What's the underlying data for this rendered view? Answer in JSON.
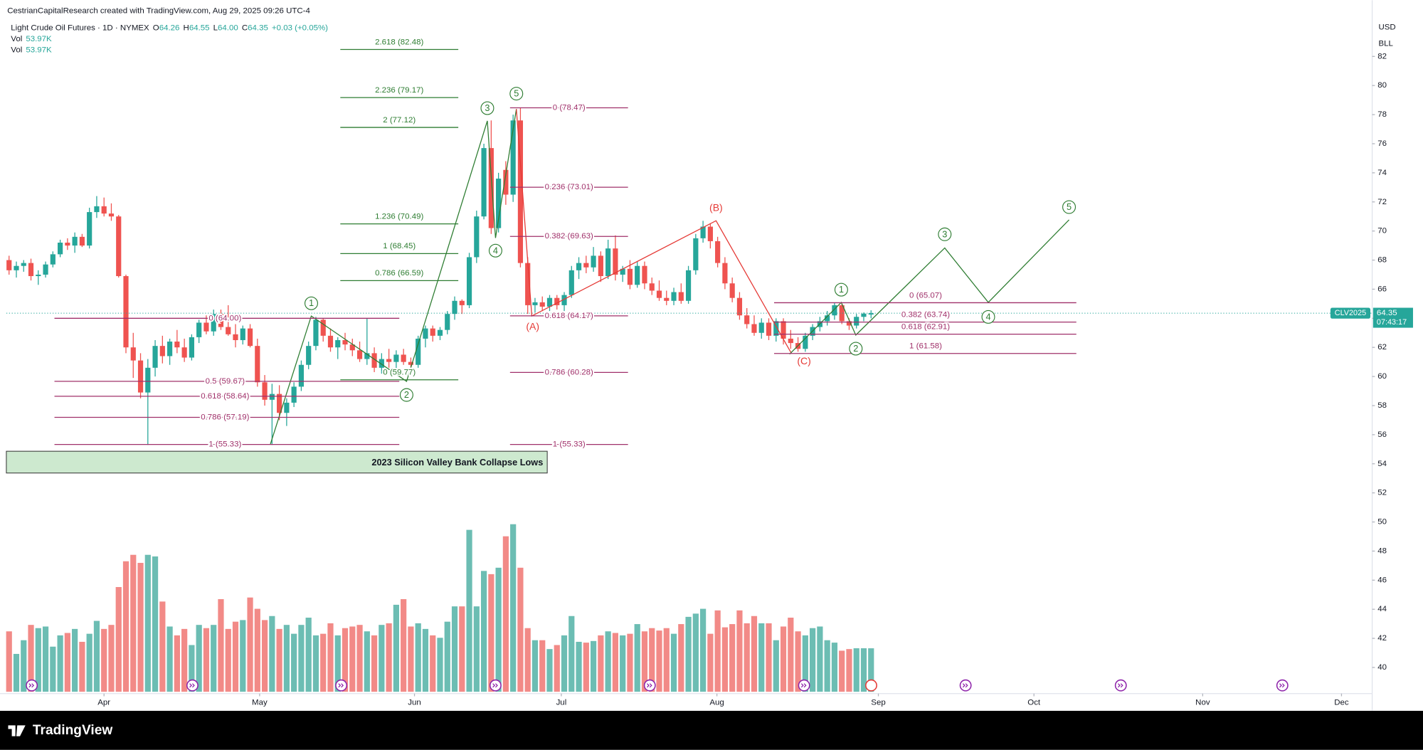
{
  "chart_data": {
    "type": "candlestick",
    "attribution": "CestrianCapitalResearch created with TradingView.com, Aug 29, 2025 09:26 UTC-4",
    "title": "Light Crude Oil Futures · 1D · NYMEX",
    "ohlc_legend": [
      {
        "label": "O",
        "value": "64.26"
      },
      {
        "label": "H",
        "value": "64.55"
      },
      {
        "label": "L",
        "value": "64.00"
      },
      {
        "label": "C",
        "value": "64.35"
      }
    ],
    "change": "+0.03 (+0.05%)",
    "volume_legend": [
      {
        "label": "Vol",
        "value": "53.97K"
      },
      {
        "label": "Vol",
        "value": "53.97K"
      }
    ],
    "currency": "USD",
    "unit": "BLL",
    "last_price_label": {
      "symbol": "CLV2025",
      "price": "64.35",
      "countdown": "07:43:17"
    },
    "annotation": "2023 Silicon Valley Bank Collapse Lows",
    "brand": "TradingView",
    "up_color": "#26a69a",
    "down_color": "#ef5350",
    "volume_up_color": "#6cbdb3",
    "volume_down_color": "#f28a87",
    "grid": false,
    "ylim": [
      38.33,
      84.62
    ],
    "yticks": [
      40,
      42,
      44,
      46,
      48,
      50,
      52,
      54,
      56,
      58,
      60,
      62,
      64,
      66,
      68,
      70,
      72,
      74,
      76,
      78,
      80,
      82
    ],
    "xlim": [
      -0.37,
      186.6
    ],
    "xticks": [
      {
        "value": 13,
        "label": "Apr"
      },
      {
        "value": 34.3,
        "label": "May"
      },
      {
        "value": 55.5,
        "label": "Jun"
      },
      {
        "value": 75.6,
        "label": "Jul"
      },
      {
        "value": 96.9,
        "label": "Aug"
      },
      {
        "value": 119,
        "label": "Sep"
      },
      {
        "value": 140.3,
        "label": "Oct"
      },
      {
        "value": 163.4,
        "label": "Nov"
      },
      {
        "value": 182.4,
        "label": "Dec"
      }
    ],
    "volume_lim": [
      0,
      240
    ],
    "candles": [
      [
        68.0,
        68.3,
        67.0,
        67.3
      ],
      [
        67.3,
        67.9,
        66.8,
        67.6
      ],
      [
        67.6,
        68.0,
        67.2,
        67.8
      ],
      [
        67.8,
        68.1,
        66.6,
        66.9
      ],
      [
        66.9,
        67.3,
        66.3,
        67.0
      ],
      [
        67.0,
        67.9,
        66.8,
        67.7
      ],
      [
        67.7,
        68.6,
        67.5,
        68.4
      ],
      [
        68.4,
        69.4,
        68.2,
        69.2
      ],
      [
        69.2,
        69.5,
        68.7,
        69.0
      ],
      [
        69.0,
        69.9,
        68.5,
        69.6
      ],
      [
        69.6,
        69.8,
        68.9,
        69.0
      ],
      [
        69.0,
        71.6,
        68.8,
        71.3
      ],
      [
        71.3,
        72.4,
        70.9,
        71.7
      ],
      [
        71.7,
        72.3,
        71.0,
        71.2
      ],
      [
        71.2,
        71.9,
        70.7,
        71.0
      ],
      [
        71.0,
        71.1,
        66.8,
        66.9
      ],
      [
        66.9,
        67.0,
        61.6,
        62.0
      ],
      [
        62.0,
        63.0,
        59.9,
        61.1
      ],
      [
        61.1,
        61.6,
        58.5,
        58.9
      ],
      [
        58.9,
        61.2,
        55.3,
        60.6
      ],
      [
        60.6,
        62.5,
        60.0,
        62.1
      ],
      [
        62.1,
        62.8,
        60.9,
        61.4
      ],
      [
        61.4,
        62.6,
        60.8,
        62.4
      ],
      [
        62.4,
        63.2,
        61.6,
        62.0
      ],
      [
        62.0,
        62.6,
        61.0,
        61.3
      ],
      [
        61.3,
        62.9,
        61.1,
        62.7
      ],
      [
        62.7,
        63.9,
        62.3,
        63.7
      ],
      [
        63.7,
        64.2,
        62.9,
        63.1
      ],
      [
        63.1,
        64.6,
        62.8,
        64.3
      ],
      [
        64.3,
        64.6,
        63.2,
        63.4
      ],
      [
        63.4,
        64.9,
        62.8,
        62.9
      ],
      [
        62.9,
        63.6,
        62.0,
        62.5
      ],
      [
        62.5,
        63.5,
        62.2,
        63.3
      ],
      [
        63.3,
        63.6,
        62.0,
        62.1
      ],
      [
        62.1,
        62.6,
        59.3,
        59.6
      ],
      [
        59.6,
        60.1,
        58.0,
        58.4
      ],
      [
        58.4,
        59.5,
        55.3,
        58.8
      ],
      [
        58.8,
        59.4,
        57.0,
        57.5
      ],
      [
        57.5,
        58.5,
        56.6,
        58.2
      ],
      [
        58.2,
        59.6,
        57.9,
        59.3
      ],
      [
        59.3,
        61.1,
        59.0,
        60.8
      ],
      [
        60.8,
        62.4,
        60.5,
        62.1
      ],
      [
        62.1,
        64.1,
        61.8,
        63.9
      ],
      [
        63.9,
        64.0,
        62.4,
        62.8
      ],
      [
        62.8,
        63.3,
        61.7,
        62.0
      ],
      [
        62.0,
        62.7,
        61.2,
        62.5
      ],
      [
        62.5,
        63.0,
        61.8,
        62.2
      ],
      [
        62.2,
        62.6,
        61.4,
        61.8
      ],
      [
        61.8,
        62.4,
        61.0,
        61.2
      ],
      [
        61.2,
        64.0,
        60.8,
        61.6
      ],
      [
        61.6,
        62.0,
        60.3,
        60.6
      ],
      [
        60.6,
        61.6,
        60.2,
        61.2
      ],
      [
        61.2,
        61.9,
        60.6,
        61.0
      ],
      [
        61.0,
        61.8,
        60.5,
        61.5
      ],
      [
        61.5,
        61.9,
        60.8,
        61.0
      ],
      [
        61.0,
        61.3,
        60.3,
        60.8
      ],
      [
        60.8,
        62.8,
        60.6,
        62.6
      ],
      [
        62.6,
        63.5,
        62.0,
        63.3
      ],
      [
        63.3,
        63.5,
        62.4,
        62.8
      ],
      [
        62.8,
        63.4,
        62.5,
        63.2
      ],
      [
        63.2,
        64.5,
        62.9,
        64.3
      ],
      [
        64.3,
        65.5,
        63.9,
        65.2
      ],
      [
        65.2,
        65.3,
        64.3,
        64.9
      ],
      [
        64.9,
        68.5,
        64.7,
        68.2
      ],
      [
        68.2,
        71.4,
        67.8,
        71.0
      ],
      [
        71.0,
        76.0,
        70.8,
        75.7
      ],
      [
        75.7,
        77.6,
        69.8,
        70.2
      ],
      [
        70.2,
        74.0,
        69.9,
        73.6
      ],
      [
        74.2,
        74.8,
        71.8,
        72.5
      ],
      [
        72.5,
        78.0,
        72.0,
        77.6
      ],
      [
        77.6,
        78.47,
        67.5,
        67.8
      ],
      [
        67.8,
        68.2,
        64.3,
        64.9
      ],
      [
        64.9,
        65.4,
        64.4,
        65.1
      ],
      [
        65.1,
        65.5,
        64.5,
        64.8
      ],
      [
        64.8,
        65.6,
        64.5,
        65.4
      ],
      [
        65.4,
        65.6,
        64.6,
        64.9
      ],
      [
        64.9,
        65.8,
        64.5,
        65.6
      ],
      [
        65.6,
        67.6,
        65.4,
        67.3
      ],
      [
        67.3,
        68.2,
        66.7,
        67.8
      ],
      [
        67.8,
        68.3,
        67.1,
        67.5
      ],
      [
        67.5,
        68.9,
        67.2,
        68.3
      ],
      [
        68.3,
        68.6,
        66.5,
        66.9
      ],
      [
        66.9,
        69.4,
        66.7,
        68.8
      ],
      [
        68.8,
        69.7,
        66.6,
        67.0
      ],
      [
        67.0,
        67.6,
        66.5,
        67.4
      ],
      [
        67.4,
        68.0,
        66.0,
        66.3
      ],
      [
        66.3,
        67.9,
        66.1,
        67.6
      ],
      [
        67.6,
        67.9,
        66.0,
        66.4
      ],
      [
        66.4,
        66.8,
        65.6,
        65.9
      ],
      [
        65.9,
        66.6,
        65.2,
        65.4
      ],
      [
        65.4,
        65.9,
        64.9,
        65.2
      ],
      [
        65.2,
        66.1,
        64.9,
        65.8
      ],
      [
        65.8,
        66.4,
        65.0,
        65.2
      ],
      [
        65.2,
        67.6,
        65.0,
        67.3
      ],
      [
        67.3,
        69.8,
        67.0,
        69.5
      ],
      [
        69.5,
        70.7,
        69.2,
        70.3
      ],
      [
        70.3,
        70.5,
        68.8,
        69.3
      ],
      [
        69.3,
        69.6,
        67.5,
        67.8
      ],
      [
        67.8,
        68.2,
        66.0,
        66.4
      ],
      [
        66.4,
        66.8,
        65.1,
        65.4
      ],
      [
        65.4,
        65.8,
        63.9,
        64.2
      ],
      [
        64.2,
        64.7,
        63.3,
        63.6
      ],
      [
        63.6,
        64.2,
        62.8,
        63.0
      ],
      [
        63.0,
        64.0,
        62.6,
        63.7
      ],
      [
        63.7,
        64.0,
        62.5,
        62.8
      ],
      [
        62.8,
        64.0,
        62.4,
        63.8
      ],
      [
        63.8,
        64.0,
        62.2,
        62.6
      ],
      [
        62.6,
        63.2,
        61.9,
        62.3
      ],
      [
        62.3,
        62.7,
        61.7,
        61.9
      ],
      [
        61.9,
        63.0,
        61.7,
        62.8
      ],
      [
        62.8,
        63.6,
        62.5,
        63.4
      ],
      [
        63.4,
        64.1,
        63.1,
        63.8
      ],
      [
        63.8,
        64.5,
        63.5,
        64.2
      ],
      [
        64.2,
        65.07,
        63.9,
        64.9
      ],
      [
        64.9,
        65.0,
        63.6,
        63.8
      ],
      [
        63.8,
        64.0,
        63.2,
        63.5
      ],
      [
        63.5,
        64.3,
        63.3,
        64.1
      ],
      [
        64.1,
        64.4,
        63.8,
        64.32
      ],
      [
        64.26,
        64.55,
        64.0,
        64.35
      ]
    ],
    "volume": [
      75,
      47,
      64,
      83,
      79,
      81,
      56,
      70,
      73,
      78,
      62,
      72,
      88,
      78,
      83,
      130,
      162,
      170,
      160,
      170,
      168,
      112,
      81,
      70,
      78,
      58,
      83,
      79,
      83,
      115,
      78,
      87,
      89,
      117,
      103,
      89,
      94,
      78,
      83,
      72,
      83,
      92,
      70,
      72,
      85,
      70,
      79,
      81,
      83,
      75,
      70,
      83,
      85,
      108,
      115,
      81,
      85,
      78,
      70,
      67,
      87,
      106,
      106,
      201,
      106,
      150,
      146,
      154,
      193,
      208,
      154,
      79,
      64,
      64,
      53,
      58,
      70,
      94,
      62,
      61,
      63,
      70,
      75,
      73,
      70,
      72,
      84,
      75,
      79,
      76,
      79,
      72,
      84,
      93,
      97,
      103,
      72,
      101,
      80,
      84,
      101,
      85,
      94,
      85,
      85,
      64,
      81,
      92,
      75,
      70,
      79,
      81,
      64,
      61,
      51,
      53,
      54,
      54,
      53.97
    ],
    "fibs": [
      {
        "color": "#a0306a",
        "levels": [
          {
            "value": 64.0,
            "label": "0 (64.00)"
          },
          {
            "value": 59.67,
            "label": "0.5 (59.67)"
          },
          {
            "value": 58.64,
            "label": "0.618 (58.64)"
          },
          {
            "value": 57.19,
            "label": "0.786 (57.19)"
          },
          {
            "value": 55.33,
            "label": "1 (55.33)"
          }
        ]
      },
      {
        "color": "#2e7d32",
        "levels": [
          {
            "value": 82.48,
            "label": "2.618 (82.48)"
          },
          {
            "value": 79.17,
            "label": "2.236 (79.17)"
          },
          {
            "value": 77.12,
            "label": "2 (77.12)"
          },
          {
            "value": 70.49,
            "label": "1.236 (70.49)"
          },
          {
            "value": 68.45,
            "label": "1 (68.45)"
          },
          {
            "value": 66.59,
            "label": "0.786 (66.59)"
          },
          {
            "value": 59.77,
            "label": "0 (59.77)"
          }
        ]
      },
      {
        "color": "#a0306a",
        "levels": [
          {
            "value": 78.47,
            "label": "0 (78.47)"
          },
          {
            "value": 73.01,
            "label": "0.236 (73.01)"
          },
          {
            "value": 69.63,
            "label": "0.382 (69.63)"
          },
          {
            "value": 64.17,
            "label": "0.618 (64.17)"
          },
          {
            "value": 60.28,
            "label": "0.786 (60.28)"
          },
          {
            "value": 55.33,
            "label": "1 (55.33)"
          }
        ]
      },
      {
        "color": "#a0306a",
        "levels": [
          {
            "value": 65.07,
            "label": "0 (65.07)"
          },
          {
            "value": 63.74,
            "label": "0.382 (63.74)"
          },
          {
            "value": 62.91,
            "label": "0.618 (62.91)"
          },
          {
            "value": 61.58,
            "label": "1 (61.58)"
          }
        ]
      }
    ],
    "wave_labels": [
      "1",
      "2",
      "3",
      "4",
      "5",
      "(A)",
      "(B)",
      "(C)",
      "1",
      "2",
      "3",
      "4",
      "5"
    ]
  }
}
